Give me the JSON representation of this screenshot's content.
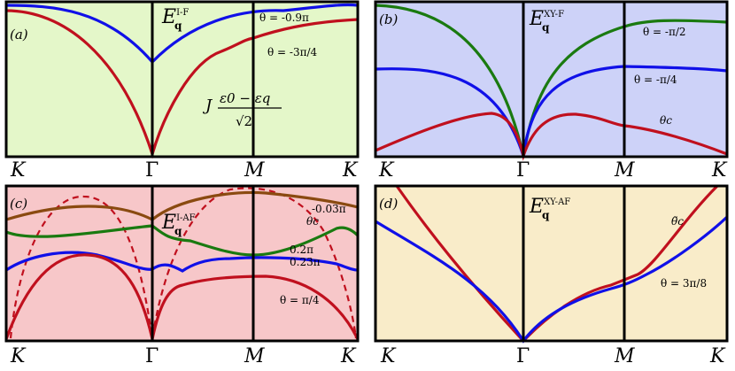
{
  "colors": {
    "panel_a_bg": "#e4f7c9",
    "panel_b_bg": "#cdd2f8",
    "panel_c_bg": "#f7c7c9",
    "panel_d_bg": "#f9ecc9",
    "red": "#c0101e",
    "blue": "#1010e8",
    "green": "#1a7a10",
    "brown": "#8a4a10"
  },
  "x_ticks": {
    "K": "K",
    "Gamma": "Γ",
    "M": "M",
    "K2": "K"
  },
  "chart_data": [
    {
      "type": "line",
      "panel": "(a)",
      "title_main": "E",
      "title_sup": "I-F",
      "title_sub": "q",
      "x_ticks": [
        "K",
        "Γ",
        "M",
        "K"
      ],
      "x": [
        0,
        0.5,
        1,
        1.5,
        2,
        2.5,
        3
      ],
      "annotations": {
        "formula_prefix": "J",
        "formula_num": "ε0 − εq",
        "formula_den": "√2"
      },
      "series": [
        {
          "name": "θ = -0.9π",
          "color": "blue",
          "values": [
            0.97,
            0.82,
            0.6,
            0.84,
            0.9,
            0.99,
            0.97
          ]
        },
        {
          "name": "θ = -3π/4",
          "color": "red",
          "values": [
            0.88,
            0.55,
            0.03,
            0.55,
            0.7,
            0.88,
            0.88
          ]
        }
      ]
    },
    {
      "type": "line",
      "panel": "(b)",
      "title_main": "E",
      "title_sup": "XY-F",
      "title_sub": "q",
      "x_ticks": [
        "K",
        "Γ",
        "M",
        "K"
      ],
      "series": [
        {
          "name": "θ = -π/2",
          "color": "green",
          "values": [
            0.97,
            0.75,
            0.03,
            0.75,
            0.9,
            0.92,
            0.92
          ]
        },
        {
          "name": "θ = -π/4",
          "color": "blue",
          "values": [
            0.57,
            0.5,
            0.03,
            0.55,
            0.57,
            0.57,
            0.55
          ]
        },
        {
          "name": "θc",
          "color": "red",
          "values": [
            0.1,
            0.33,
            0.03,
            0.33,
            0.25,
            0.22,
            0.05
          ]
        }
      ]
    },
    {
      "type": "line",
      "panel": "(c)",
      "title_main": "E",
      "title_sup": "I-AF",
      "title_sub": "q",
      "x_ticks": [
        "K",
        "Γ",
        "M",
        "K"
      ],
      "series": [
        {
          "name": "-0.03π",
          "color": "brown",
          "values": [
            0.77,
            0.9,
            0.78,
            0.95,
            0.92,
            0.9,
            0.82
          ]
        },
        {
          "name": "θc",
          "color": "red",
          "dashed": true,
          "values": [
            0.05,
            0.87,
            0.02,
            0.87,
            0.95,
            0.9,
            0.05
          ]
        },
        {
          "name": "0.2π",
          "color": "green",
          "values": [
            0.7,
            0.67,
            0.74,
            0.62,
            0.55,
            0.62,
            0.72
          ]
        },
        {
          "name": "0.23π",
          "color": "blue",
          "values": [
            0.48,
            0.55,
            0.47,
            0.48,
            0.5,
            0.5,
            0.48
          ]
        },
        {
          "name": "θ = π/4",
          "color": "red",
          "values": [
            0.03,
            0.5,
            0.03,
            0.3,
            0.38,
            0.3,
            0.03
          ]
        }
      ]
    },
    {
      "type": "line",
      "panel": "(d)",
      "title_main": "E",
      "title_sup": "XY-AF",
      "title_sub": "q",
      "x_ticks": [
        "K",
        "Γ",
        "M",
        "K"
      ],
      "series": [
        {
          "name": "θ̃c",
          "color": "red",
          "values": [
            1.0,
            0.45,
            0.0,
            0.42,
            0.46,
            0.75,
            1.05
          ]
        },
        {
          "name": "θ = 3π/8",
          "color": "blue",
          "values": [
            0.85,
            0.45,
            0.0,
            0.38,
            0.45,
            0.6,
            0.8
          ]
        }
      ]
    }
  ]
}
